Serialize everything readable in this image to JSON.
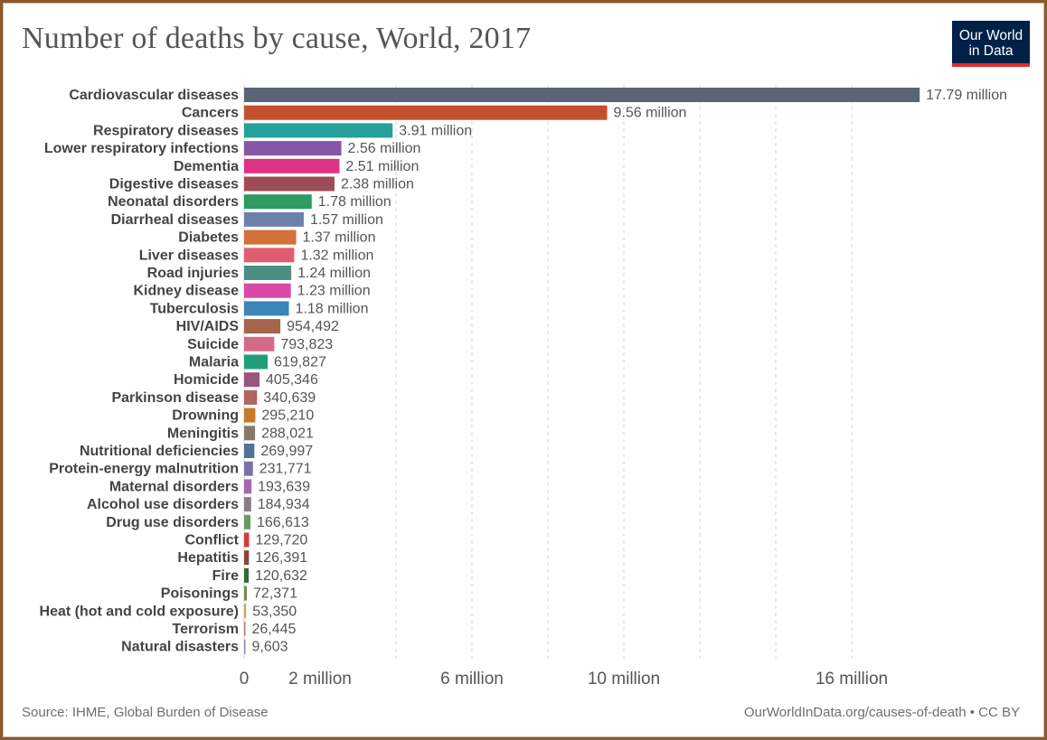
{
  "title": "Number of deaths by cause, World, 2017",
  "logo": {
    "line1": "Our World",
    "line2": "in Data"
  },
  "footer": {
    "source": "Source: IHME, Global Burden of Disease",
    "url": "OurWorldInData.org/causes-of-death • CC BY"
  },
  "chart_data": {
    "type": "bar",
    "orientation": "horizontal",
    "title": "Number of deaths by cause, World, 2017",
    "xlabel": "",
    "ylabel": "",
    "xlim": [
      0,
      18000000
    ],
    "grid": true,
    "x_ticks": [
      {
        "value": 0,
        "label": "0"
      },
      {
        "value": 2000000,
        "label": "2 million"
      },
      {
        "value": 6000000,
        "label": "6 million"
      },
      {
        "value": 10000000,
        "label": "10 million"
      },
      {
        "value": 16000000,
        "label": "16 million"
      }
    ],
    "gridlines": [
      4000000,
      6000000,
      8000000,
      10000000,
      12000000,
      14000000,
      16000000
    ],
    "bars": [
      {
        "category": "Cardiovascular diseases",
        "value": 17790000,
        "label": "17.79 million",
        "color": "#5b6477"
      },
      {
        "category": "Cancers",
        "value": 9560000,
        "label": "9.56 million",
        "color": "#c2502c"
      },
      {
        "category": "Respiratory diseases",
        "value": 3910000,
        "label": "3.91 million",
        "color": "#26a09a"
      },
      {
        "category": "Lower respiratory infections",
        "value": 2560000,
        "label": "2.56 million",
        "color": "#8657a7"
      },
      {
        "category": "Dementia",
        "value": 2510000,
        "label": "2.51 million",
        "color": "#dc3384"
      },
      {
        "category": "Digestive diseases",
        "value": 2380000,
        "label": "2.38 million",
        "color": "#9e4c56"
      },
      {
        "category": "Neonatal disorders",
        "value": 1780000,
        "label": "1.78 million",
        "color": "#2d9b62"
      },
      {
        "category": "Diarrheal diseases",
        "value": 1570000,
        "label": "1.57 million",
        "color": "#6b82ad"
      },
      {
        "category": "Diabetes",
        "value": 1370000,
        "label": "1.37 million",
        "color": "#d2713a"
      },
      {
        "category": "Liver diseases",
        "value": 1320000,
        "label": "1.32 million",
        "color": "#e05d6f"
      },
      {
        "category": "Road injuries",
        "value": 1240000,
        "label": "1.24 million",
        "color": "#4c8e82"
      },
      {
        "category": "Kidney disease",
        "value": 1230000,
        "label": "1.23 million",
        "color": "#d84aa5"
      },
      {
        "category": "Tuberculosis",
        "value": 1180000,
        "label": "1.18 million",
        "color": "#3b86b8"
      },
      {
        "category": "HIV/AIDS",
        "value": 954492,
        "label": "954,492",
        "color": "#a6644a"
      },
      {
        "category": "Suicide",
        "value": 793823,
        "label": "793,823",
        "color": "#d36a87"
      },
      {
        "category": "Malaria",
        "value": 619827,
        "label": "619,827",
        "color": "#1f9e79"
      },
      {
        "category": "Homicide",
        "value": 405346,
        "label": "405,346",
        "color": "#9c557c"
      },
      {
        "category": "Parkinson disease",
        "value": 340639,
        "label": "340,639",
        "color": "#b06560"
      },
      {
        "category": "Drowning",
        "value": 295210,
        "label": "295,210",
        "color": "#c57a2c"
      },
      {
        "category": "Meningitis",
        "value": 288021,
        "label": "288,021",
        "color": "#8a7867"
      },
      {
        "category": "Nutritional deficiencies",
        "value": 269997,
        "label": "269,997",
        "color": "#4f7396"
      },
      {
        "category": "Protein-energy malnutrition",
        "value": 231771,
        "label": "231,771",
        "color": "#7a72a8"
      },
      {
        "category": "Maternal disorders",
        "value": 193639,
        "label": "193,639",
        "color": "#a469ad"
      },
      {
        "category": "Alcohol use disorders",
        "value": 184934,
        "label": "184,934",
        "color": "#8c7a85"
      },
      {
        "category": "Drug use disorders",
        "value": 166613,
        "label": "166,613",
        "color": "#6a9a62"
      },
      {
        "category": "Conflict",
        "value": 129720,
        "label": "129,720",
        "color": "#d9363f"
      },
      {
        "category": "Hepatitis",
        "value": 126391,
        "label": "126,391",
        "color": "#8a4636"
      },
      {
        "category": "Fire",
        "value": 120632,
        "label": "120,632",
        "color": "#2f6b3a"
      },
      {
        "category": "Poisonings",
        "value": 72371,
        "label": "72,371",
        "color": "#7a8a55"
      },
      {
        "category": "Heat (hot and cold exposure)",
        "value": 53350,
        "label": "53,350",
        "color": "#c9a36a"
      },
      {
        "category": "Terrorism",
        "value": 26445,
        "label": "26,445",
        "color": "#c07a6a"
      },
      {
        "category": "Natural disasters",
        "value": 9603,
        "label": "9,603",
        "color": "#8a8fb0"
      }
    ]
  }
}
